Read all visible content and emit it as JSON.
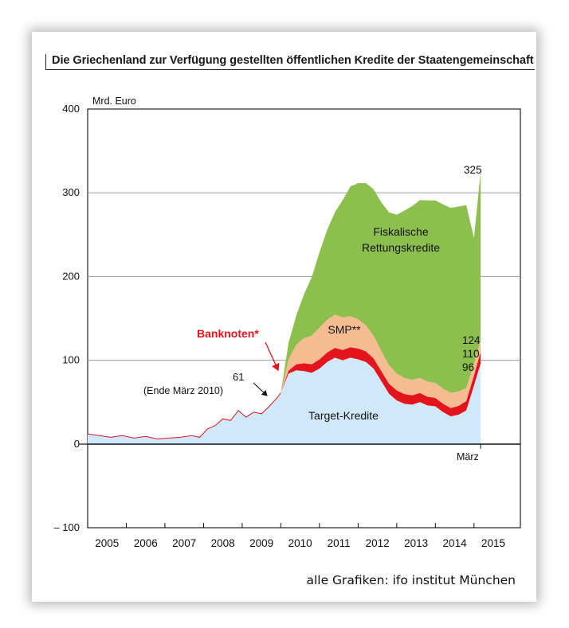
{
  "title": "Die Griechenland zur Verfügung gestellten öffentlichen Kredite der Staatengemeinschaft",
  "credit": "alle Grafiken: ifo institut München",
  "colors": {
    "target": "#cfe9fa",
    "banknoten": "#e3141b",
    "smp": "#f5bc92",
    "fiscal": "#8cbf4e",
    "grid": "#9a9a9a"
  },
  "chart_data": {
    "type": "area",
    "stacked": true,
    "ylabel": "Mrd. Euro",
    "ylim": [
      -100,
      400
    ],
    "yticks": [
      400,
      300,
      200,
      100,
      0,
      -100
    ],
    "ytick_labels": [
      "400",
      "300",
      "200",
      "100",
      "0",
      "– 100"
    ],
    "xlim": [
      2005,
      2016.2
    ],
    "x_tick_labels": [
      "2005",
      "2006",
      "2007",
      "2008",
      "2009",
      "2010",
      "2011",
      "2012",
      "2013",
      "2014",
      "2015"
    ],
    "x_marker_label": "März",
    "grid": true,
    "series": [
      {
        "name": "Target-Kredite",
        "color_key": "target",
        "x": [
          2005,
          2005.3,
          2005.6,
          2005.9,
          2006.2,
          2006.5,
          2006.8,
          2007.1,
          2007.4,
          2007.7,
          2007.9,
          2008.1,
          2008.3,
          2008.5,
          2008.7,
          2008.9,
          2009.1,
          2009.3,
          2009.5,
          2009.7,
          2009.9,
          2010.0,
          2010.2,
          2010.4,
          2010.6,
          2010.8,
          2011.0,
          2011.2,
          2011.4,
          2011.6,
          2011.8,
          2012.0,
          2012.2,
          2012.4,
          2012.6,
          2012.8,
          2013.0,
          2013.2,
          2013.4,
          2013.6,
          2013.8,
          2014.0,
          2014.2,
          2014.4,
          2014.6,
          2014.8,
          2015.0,
          2015.17
        ],
        "values": [
          12,
          10,
          8,
          10,
          7,
          9,
          6,
          7,
          8,
          10,
          8,
          18,
          22,
          30,
          28,
          40,
          32,
          38,
          36,
          45,
          55,
          61,
          84,
          88,
          87,
          85,
          90,
          98,
          103,
          100,
          103,
          101,
          98,
          90,
          75,
          60,
          52,
          48,
          47,
          50,
          46,
          45,
          38,
          33,
          35,
          40,
          70,
          96
        ]
      },
      {
        "name": "Banknoten",
        "color_key": "banknoten",
        "x": [
          2010.0,
          2010.5,
          2011.0,
          2011.5,
          2012.0,
          2012.5,
          2013.0,
          2013.5,
          2014.0,
          2014.5,
          2015.0,
          2015.17
        ],
        "values": [
          0,
          9,
          11,
          12,
          13,
          12,
          12,
          11,
          10,
          10,
          12,
          14
        ]
      },
      {
        "name": "SMP**",
        "color_key": "smp",
        "x": [
          2010.0,
          2010.3,
          2010.6,
          2011.0,
          2011.5,
          2012.0,
          2012.5,
          2013.0,
          2013.5,
          2014.0,
          2014.5,
          2015.0,
          2015.17
        ],
        "values": [
          0,
          20,
          30,
          38,
          40,
          35,
          25,
          20,
          18,
          18,
          18,
          14,
          14
        ]
      },
      {
        "name": "Fiskalische Rettungskredite",
        "color_key": "fiscal",
        "x": [
          2010.0,
          2010.1,
          2010.3,
          2010.5,
          2010.7,
          2010.9,
          2011.1,
          2011.3,
          2011.5,
          2011.7,
          2011.9,
          2012.1,
          2012.3,
          2012.5,
          2012.7,
          2012.9,
          2013.1,
          2013.3,
          2013.5,
          2013.7,
          2013.9,
          2014.1,
          2014.3,
          2014.5,
          2014.7,
          2014.9,
          2015.0,
          2015.1,
          2015.17
        ],
        "values": [
          0,
          15,
          25,
          45,
          60,
          80,
          100,
          115,
          130,
          150,
          160,
          165,
          175,
          175,
          180,
          185,
          195,
          205,
          210,
          215,
          218,
          218,
          222,
          220,
          222,
          215,
          150,
          195,
          201
        ]
      }
    ],
    "totals_end": [
      96,
      110,
      124,
      325
    ],
    "annotations": {
      "series_labels": [
        "Target-Kredite",
        "Banknoten*",
        "SMP**",
        "Fiskalische",
        "Rettungskredite"
      ],
      "value_labels": [
        "325",
        "124",
        "110",
        "96"
      ],
      "note_value": "61",
      "note_text": "(Ende März 2010)"
    }
  }
}
